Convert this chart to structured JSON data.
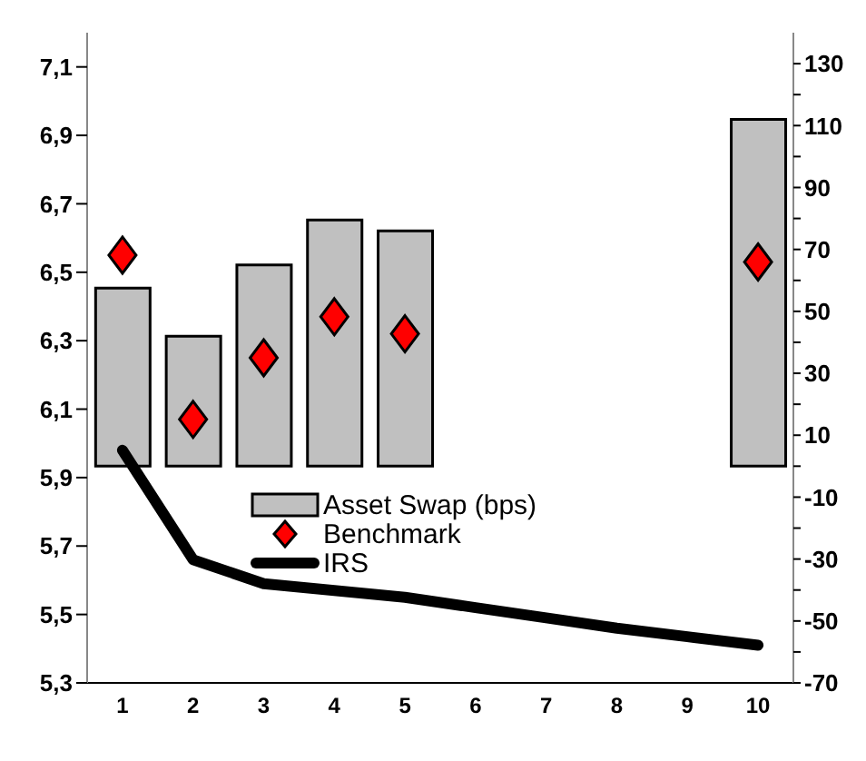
{
  "chart_data": {
    "type": "bar",
    "categories": [
      "1",
      "2",
      "3",
      "4",
      "5",
      "6",
      "7",
      "8",
      "9",
      "10"
    ],
    "series": [
      {
        "name": "Asset Swap (bps)",
        "axis": "y2",
        "color": "#c0c0c0",
        "values": [
          57.5,
          42,
          65,
          79.5,
          76,
          null,
          null,
          null,
          null,
          112
        ]
      },
      {
        "name": "Benchmark",
        "type": "scatter",
        "color": "#ff0000",
        "marker": "diamond",
        "values": [
          6.55,
          6.07,
          6.25,
          6.37,
          6.32,
          null,
          null,
          null,
          null,
          6.53
        ]
      },
      {
        "name": "IRS",
        "type": "line",
        "color": "#000000",
        "marker": "none",
        "line_style": "solid",
        "values": [
          5.98,
          5.66,
          5.59,
          5.57,
          5.55,
          5.52,
          5.49,
          5.46,
          5.435,
          5.41
        ]
      }
    ],
    "ylim": [
      5.3,
      7.2
    ],
    "yticks": [
      {
        "value": 5.3,
        "label": "5,3"
      },
      {
        "value": 5.5,
        "label": "5,5"
      },
      {
        "value": 5.7,
        "label": "5,7"
      },
      {
        "value": 5.9,
        "label": "5,9"
      },
      {
        "value": 6.1,
        "label": "6,1"
      },
      {
        "value": 6.3,
        "label": "6,3"
      },
      {
        "value": 6.5,
        "label": "6,5"
      },
      {
        "value": 6.7,
        "label": "6,7"
      },
      {
        "value": 6.9,
        "label": "6,9"
      },
      {
        "value": 7.1,
        "label": "7,1"
      }
    ],
    "y2lim": [
      -70,
      140
    ],
    "y2ticks": [
      -70,
      {
        "value": -60,
        "label": null
      },
      -50,
      {
        "value": -40,
        "label": null
      },
      -30,
      {
        "value": -20,
        "label": null
      },
      -10,
      {
        "value": 0,
        "label": null
      },
      10,
      {
        "value": 20,
        "label": null
      },
      30,
      {
        "value": 40,
        "label": null
      },
      50,
      {
        "value": 60,
        "label": null
      },
      70,
      {
        "value": 80,
        "label": null
      },
      90,
      {
        "value": 100,
        "label": null
      },
      110,
      {
        "value": 120,
        "label": null
      },
      130
    ],
    "grid": false,
    "legend": "center"
  }
}
